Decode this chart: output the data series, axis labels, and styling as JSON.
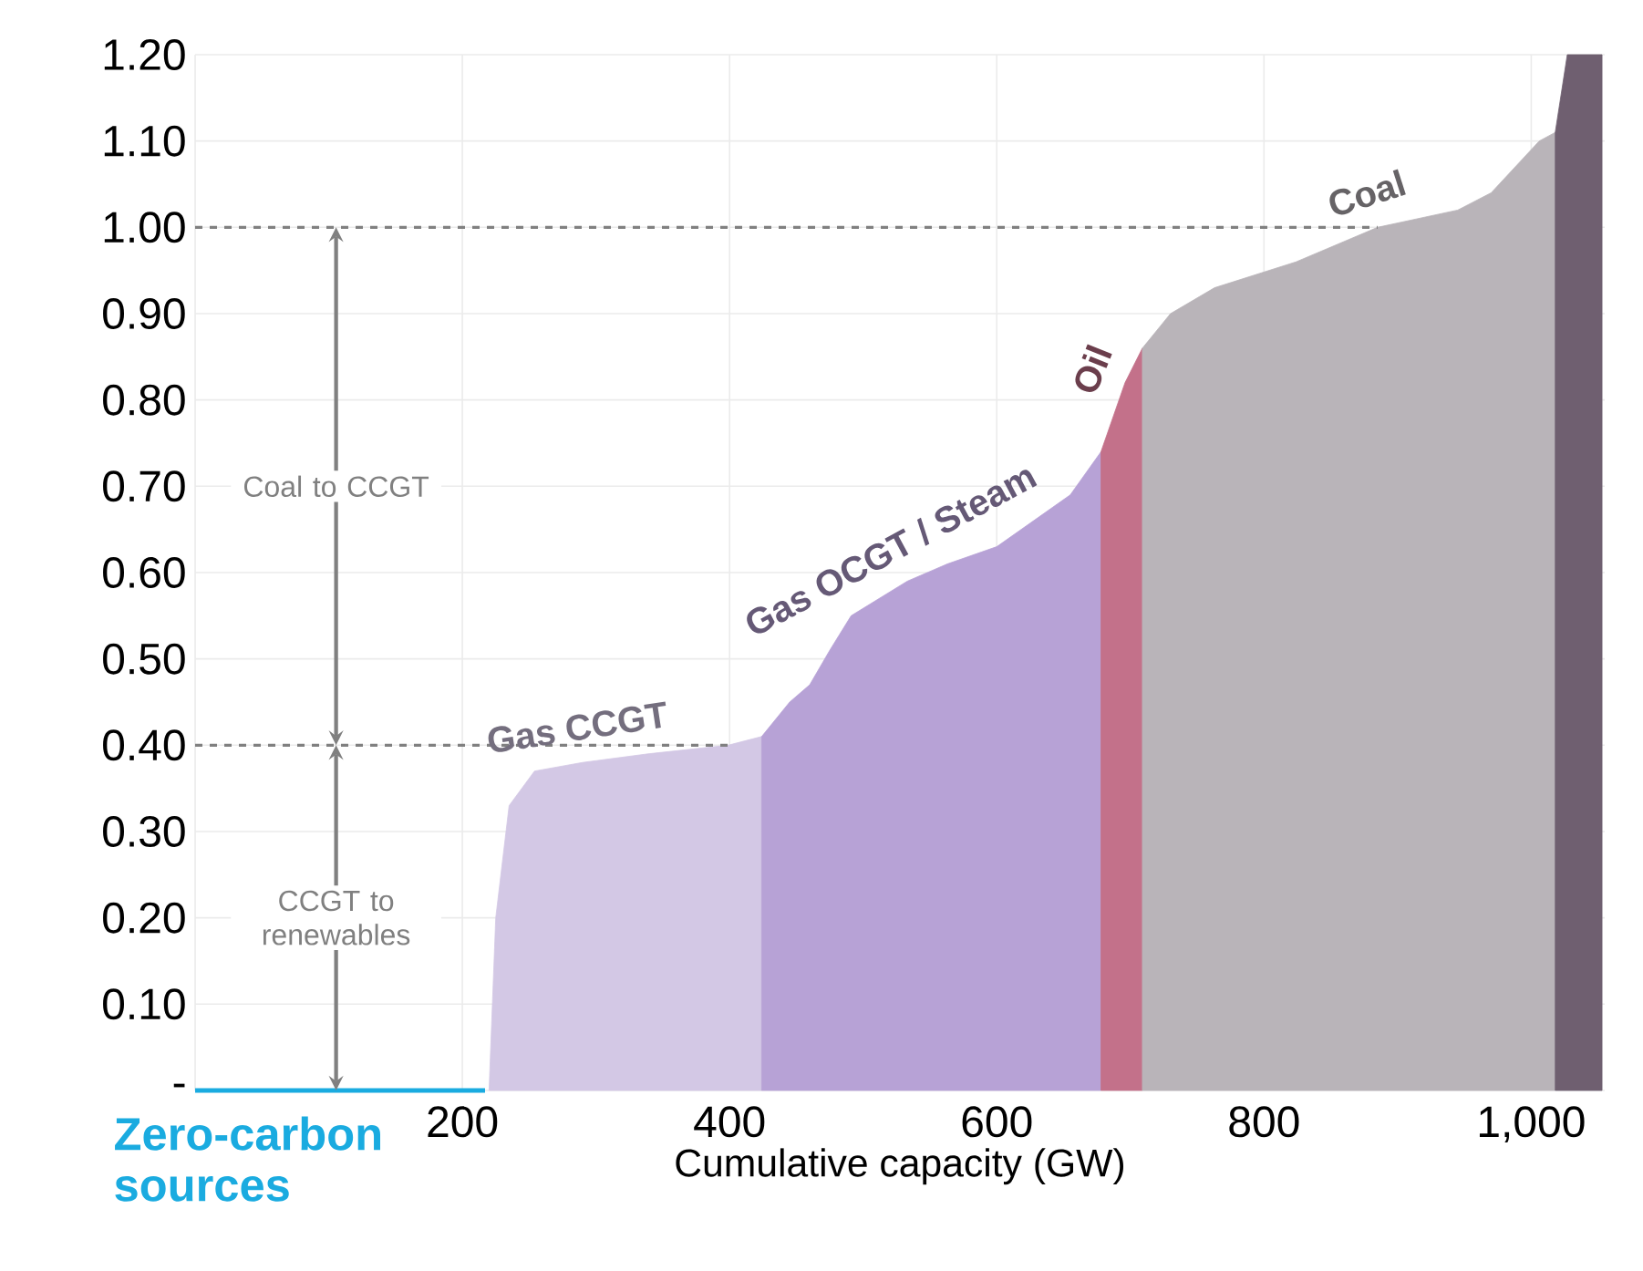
{
  "chart_data": {
    "type": "area",
    "xlabel": "Cumulative capacity (GW)",
    "xlim": [
      0,
      1055
    ],
    "ylim": [
      0,
      1.2
    ],
    "xticks": [
      {
        "value": 0,
        "label": null
      },
      200,
      400,
      600,
      800,
      {
        "value": 1000,
        "label": "1,000"
      }
    ],
    "yticks": [
      {
        "value": 0,
        "label": "-"
      },
      {
        "value": 0.1,
        "label": "0.10"
      },
      {
        "value": 0.2,
        "label": "0.20"
      },
      {
        "value": 0.3,
        "label": "0.30"
      },
      {
        "value": 0.4,
        "label": "0.40"
      },
      {
        "value": 0.5,
        "label": "0.50"
      },
      {
        "value": 0.6,
        "label": "0.60"
      },
      {
        "value": 0.7,
        "label": "0.70"
      },
      {
        "value": 0.8,
        "label": "0.80"
      },
      {
        "value": 0.9,
        "label": "0.90"
      },
      {
        "value": 1.0,
        "label": "1.00"
      },
      {
        "value": 1.1,
        "label": "1.10"
      },
      {
        "value": 1.2,
        "label": "1.20"
      }
    ],
    "grid": true,
    "series": [
      {
        "name": "Zero-carbon sources",
        "type": "line",
        "color": "#1aabe0",
        "x": [
          0,
          217
        ],
        "values": [
          0,
          0
        ]
      },
      {
        "name": "Gas CCGT",
        "color": "#d3c8e5",
        "x": [
          220,
          225,
          235,
          254,
          290,
          339,
          399,
          424
        ],
        "values": [
          0,
          0.2,
          0.33,
          0.37,
          0.38,
          0.39,
          0.4,
          0.41
        ]
      },
      {
        "name": "Gas OCGT / Steam",
        "color": "#b7a2d6",
        "x": [
          424,
          445,
          460,
          475,
          491,
          533,
          563,
          600,
          655,
          678
        ],
        "values": [
          0.41,
          0.45,
          0.47,
          0.51,
          0.55,
          0.59,
          0.61,
          0.63,
          0.69,
          0.74
        ]
      },
      {
        "name": "Oil",
        "color": "#c3718a",
        "x": [
          678,
          696,
          709
        ],
        "values": [
          0.74,
          0.82,
          0.86
        ]
      },
      {
        "name": "Coal",
        "color": "#b9b4b9",
        "x": [
          709,
          730,
          763,
          824,
          885,
          945,
          970,
          1006,
          1018
        ],
        "values": [
          0.86,
          0.9,
          0.93,
          0.96,
          1.0,
          1.02,
          1.04,
          1.1,
          1.11
        ]
      },
      {
        "color": "#6f5f70",
        "x": [
          1018,
          1027,
          1053
        ],
        "values": [
          1.11,
          1.2,
          1.2
        ]
      }
    ],
    "ref_lines": [
      {
        "axis": "y",
        "value": 0.4,
        "color": "#808080",
        "line_style": "dashed"
      },
      {
        "axis": "y",
        "value": 1.0,
        "color": "#808080",
        "line_style": "dashed"
      }
    ],
    "annotations": [
      "CCGT to renewables",
      "Coal to CCGT"
    ]
  }
}
